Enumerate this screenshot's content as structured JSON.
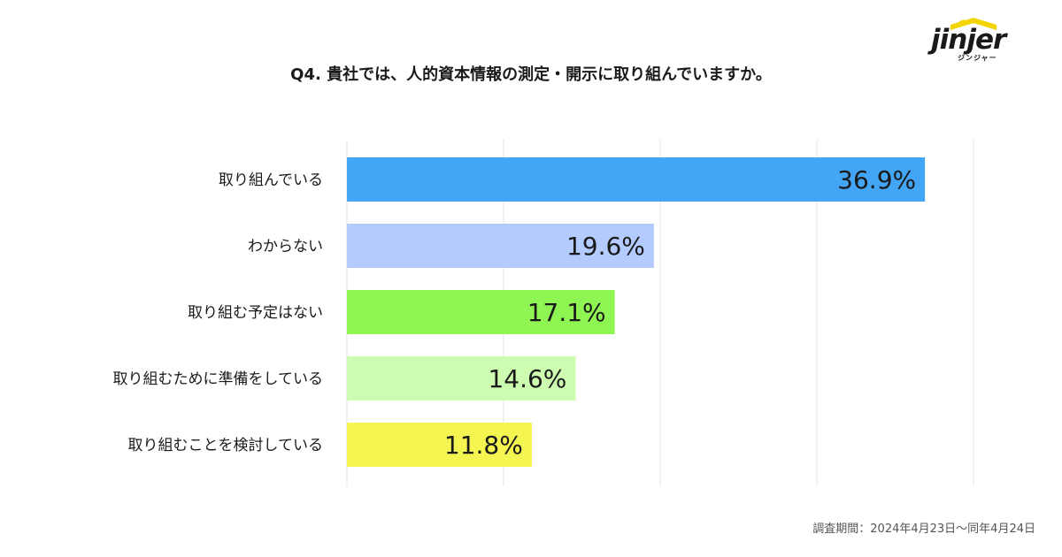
{
  "brand": {
    "logo_text": "jinjer",
    "logo_subtext": "ジンジャー",
    "accent": "#F2D400"
  },
  "footnote": "調査期間：2024年4月23日〜同年4月24日",
  "chart_data": {
    "type": "bar",
    "orientation": "horizontal",
    "title": "Q4. 貴社では、人的資本情報の測定・開示に取り組んでいますか。",
    "categories": [
      "取り組んでいる",
      "わからない",
      "取り組む予定はない",
      "取り組むために準備をしている",
      "取り組むことを検討している"
    ],
    "values": [
      36.9,
      19.6,
      17.1,
      14.6,
      11.8
    ],
    "value_labels": [
      "36.9%",
      "19.6%",
      "17.1%",
      "14.6%",
      "11.8%"
    ],
    "unit": "%",
    "colors": [
      "#42A5F5",
      "#B3CBFF",
      "#8EF552",
      "#CDFBB0",
      "#F5F552"
    ],
    "xlim": [
      0,
      40
    ],
    "grid_step": 10,
    "grid": true,
    "legend": "none"
  }
}
